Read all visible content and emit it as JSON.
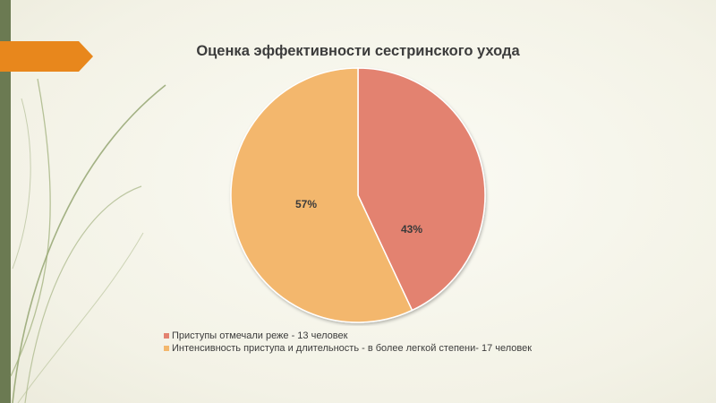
{
  "chart_data": {
    "type": "pie",
    "title": "Оценка эффективности сестринского ухода",
    "legend_position": "bottom-left",
    "slices": [
      {
        "label": "Приступы отмечали реже - 13 человек",
        "value": 43,
        "display": "43%",
        "color": "#e38270"
      },
      {
        "label": "Интенсивность приступа и длительность - в более легкой степени- 17 человек",
        "value": 57,
        "display": "57%",
        "color": "#f3b76d"
      }
    ]
  },
  "decor": {
    "left_bar_color": "#6b7a52",
    "accent_color": "#e8871c",
    "leaf_color": "#8fa06a"
  }
}
